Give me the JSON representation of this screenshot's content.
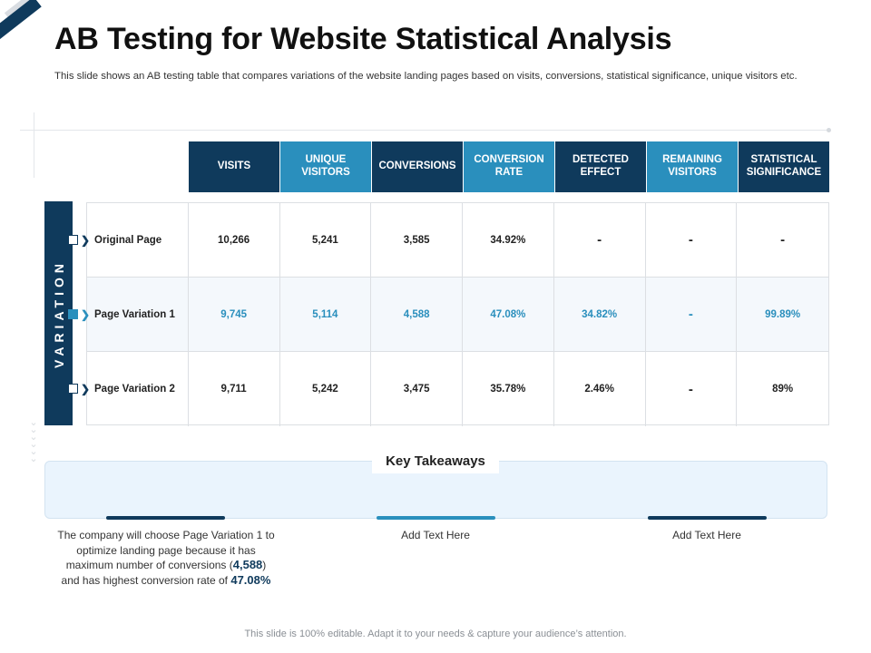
{
  "title": "AB Testing for Website Statistical Analysis",
  "subtitle": "This slide shows an AB testing table that compares variations of the website landing pages based on visits, conversions, statistical significance, unique visitors etc.",
  "variation_label": "VARIATION",
  "colors": {
    "dark": "#0f3a5c",
    "accent": "#2a8fbd",
    "highlight_row_bg": "#f4f8fc",
    "takeaway_bg": "#eaf4fd"
  },
  "table": {
    "headers": [
      "VISITS",
      "UNIQUE VISITORS",
      "CONVERSIONS",
      "CONVERSION RATE",
      "DETECTED EFFECT",
      "REMAINING VISITORS",
      "STATISTICAL SIGNIFICANCE"
    ],
    "rows": [
      {
        "label": "Original Page",
        "cells": [
          "10,266",
          "5,241",
          "3,585",
          "34.92%",
          "-",
          "-",
          "-"
        ]
      },
      {
        "label": "Page Variation 1",
        "cells": [
          "9,745",
          "5,114",
          "4,588",
          "47.08%",
          "34.82%",
          "-",
          "99.89%"
        ]
      },
      {
        "label": "Page Variation 2",
        "cells": [
          "9,711",
          "5,242",
          "3,475",
          "35.78%",
          "2.46%",
          "-",
          "89%"
        ]
      }
    ]
  },
  "takeaways": {
    "title": "Key Takeaways",
    "items": [
      {
        "part1": "The company will choose Page Variation 1 to optimize landing page because it has maximum number of conversions (",
        "value1": "4,588",
        "part2": ") and has highest conversion rate of ",
        "value2": "47.08%"
      },
      {
        "text": "Add Text Here"
      },
      {
        "text": "Add Text Here"
      }
    ]
  },
  "footer": "This slide is 100% editable. Adapt it to your needs & capture your audience’s attention."
}
